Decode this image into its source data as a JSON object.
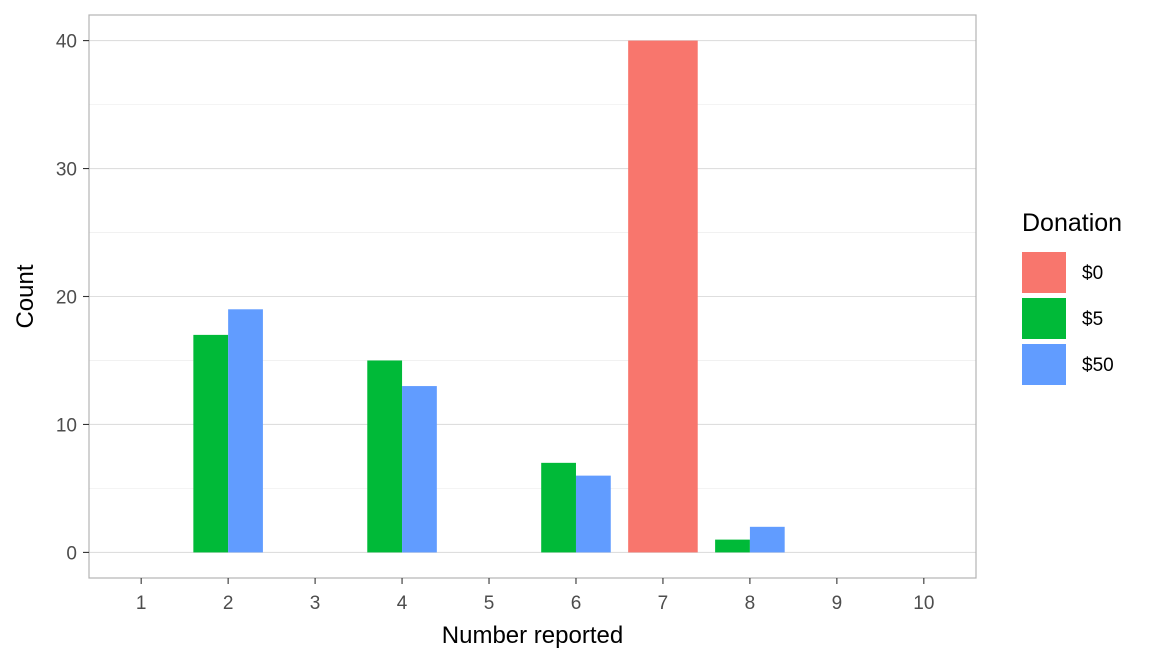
{
  "chart_data": {
    "type": "bar",
    "x": [
      1,
      2,
      3,
      4,
      5,
      6,
      7,
      8,
      9,
      10
    ],
    "xlabel": "Number reported",
    "ylabel": "Count",
    "ylim": [
      -2,
      42
    ],
    "yticks": [
      0,
      10,
      20,
      30,
      40
    ],
    "grid": true,
    "legend": {
      "title": "Donation",
      "placement": "right"
    },
    "series": [
      {
        "name": "$0",
        "color": "#F8766D",
        "points": [
          {
            "x": 7,
            "y": 40
          }
        ]
      },
      {
        "name": "$5",
        "color": "#00BA38",
        "points": [
          {
            "x": 2,
            "y": 17
          },
          {
            "x": 4,
            "y": 15
          },
          {
            "x": 6,
            "y": 7
          },
          {
            "x": 8,
            "y": 1
          }
        ]
      },
      {
        "name": "$50",
        "color": "#619CFF",
        "points": [
          {
            "x": 2,
            "y": 19
          },
          {
            "x": 4,
            "y": 13
          },
          {
            "x": 6,
            "y": 6
          },
          {
            "x": 8,
            "y": 2
          }
        ]
      }
    ]
  }
}
